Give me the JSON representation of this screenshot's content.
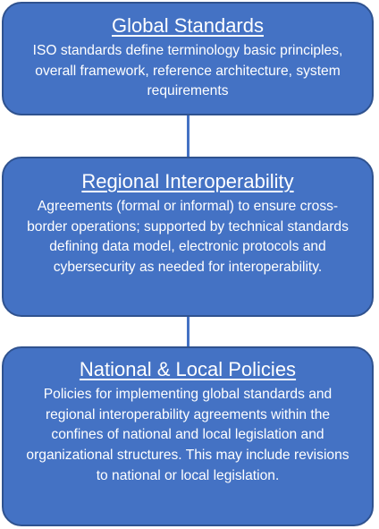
{
  "diagram": {
    "colors": {
      "box_fill": "#4472c4",
      "box_border": "#2f528f",
      "text": "#ffffff",
      "connector": "#4472c4"
    },
    "boxes": [
      {
        "title": "Global Standards",
        "body": "ISO standards define terminology  basic principles,  overall framework,  reference architecture, system requirements"
      },
      {
        "title": "Regional Interoperability",
        "body": "Agreements (formal or informal) to ensure cross-border operations; supported by technical standards defining data model, electronic protocols and cybersecurity as needed for interoperability."
      },
      {
        "title": "National & Local Policies",
        "body": "Policies for implementing global standards and regional interoperability agreements within the confines of national and local legislation and organizational structures. This may include revisions to national or local legislation."
      }
    ]
  }
}
